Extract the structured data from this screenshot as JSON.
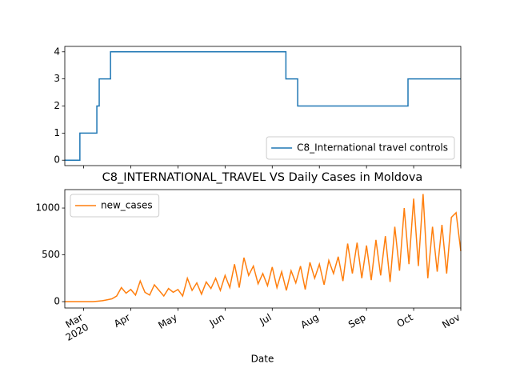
{
  "chart_data": [
    {
      "type": "line",
      "drawstyle": "steps-post",
      "x": [
        2.6,
        2.92,
        3.28,
        3.33,
        3.57,
        7.29,
        7.54,
        9.88,
        11.0
      ],
      "series": [
        {
          "name": "C8_International travel controls",
          "color": "#1f77b4",
          "values": [
            0,
            1,
            2,
            3,
            4,
            3,
            2,
            3,
            3
          ]
        }
      ],
      "xlim": [
        2.6,
        11.0
      ],
      "ylim": [
        -0.2,
        4.2
      ],
      "yticks": [
        0,
        1,
        2,
        3,
        4
      ],
      "legend_loc": "lower right"
    },
    {
      "type": "line",
      "title": "C8_INTERNATIONAL_TRAVEL VS Daily Cases in Moldova",
      "xlabel": "Date",
      "x": [
        2.6,
        2.7,
        2.8,
        2.9,
        3.0,
        3.1,
        3.2,
        3.3,
        3.4,
        3.5,
        3.6,
        3.7,
        3.8,
        3.9,
        4.0,
        4.1,
        4.2,
        4.3,
        4.4,
        4.5,
        4.6,
        4.7,
        4.8,
        4.9,
        5.0,
        5.1,
        5.2,
        5.3,
        5.4,
        5.5,
        5.6,
        5.7,
        5.8,
        5.9,
        6.0,
        6.1,
        6.2,
        6.3,
        6.4,
        6.5,
        6.6,
        6.7,
        6.8,
        6.9,
        7.0,
        7.1,
        7.2,
        7.3,
        7.4,
        7.5,
        7.6,
        7.7,
        7.8,
        7.9,
        8.0,
        8.1,
        8.2,
        8.3,
        8.4,
        8.5,
        8.6,
        8.7,
        8.8,
        8.9,
        9.0,
        9.1,
        9.2,
        9.3,
        9.4,
        9.5,
        9.6,
        9.7,
        9.8,
        9.9,
        10.0,
        10.1,
        10.2,
        10.3,
        10.4,
        10.5,
        10.6,
        10.7,
        10.8,
        10.9,
        11.0
      ],
      "series": [
        {
          "name": "new_cases",
          "color": "#ff7f0e",
          "values": [
            0,
            0,
            0,
            0,
            0,
            0,
            0,
            5,
            10,
            20,
            30,
            60,
            150,
            90,
            130,
            70,
            220,
            100,
            70,
            180,
            120,
            60,
            140,
            100,
            130,
            60,
            250,
            120,
            200,
            80,
            210,
            140,
            250,
            120,
            280,
            150,
            400,
            150,
            470,
            280,
            380,
            190,
            300,
            170,
            370,
            150,
            320,
            120,
            330,
            200,
            380,
            130,
            420,
            250,
            400,
            180,
            440,
            300,
            480,
            220,
            620,
            300,
            630,
            250,
            600,
            230,
            660,
            280,
            700,
            210,
            800,
            330,
            1000,
            400,
            1100,
            380,
            1150,
            250,
            800,
            320,
            820,
            300,
            900,
            950,
            540
          ]
        }
      ],
      "xlim": [
        2.6,
        11.0
      ],
      "ylim": [
        -68,
        1197
      ],
      "yticks": [
        0,
        500,
        1000
      ],
      "xticks": [
        {
          "value": 3,
          "label": "Mar"
        },
        {
          "value": 4,
          "label": "Apr"
        },
        {
          "value": 5,
          "label": "May"
        },
        {
          "value": 6,
          "label": "Jun"
        },
        {
          "value": 7,
          "label": "Jul"
        },
        {
          "value": 8,
          "label": "Aug"
        },
        {
          "value": 9,
          "label": "Sep"
        },
        {
          "value": 10,
          "label": "Oct"
        },
        {
          "value": 11,
          "label": "Nov"
        }
      ],
      "x_year_label": "2020",
      "legend_loc": "upper left"
    }
  ]
}
